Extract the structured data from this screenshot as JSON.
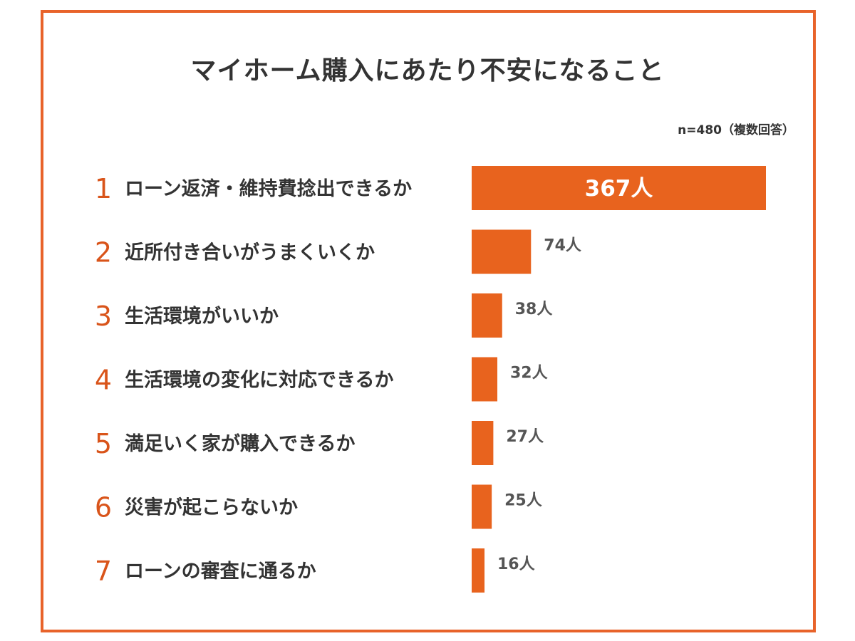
{
  "chart_data": {
    "type": "bar",
    "orientation": "horizontal",
    "title": "マイホーム購入にあたり不安になること",
    "note": "n=480（複数回答）",
    "ranks": [
      "1",
      "2",
      "3",
      "4",
      "5",
      "6",
      "7"
    ],
    "categories": [
      "ローン返済・維持費捻出できるか",
      "近所付き合いがうまくいくか",
      "生活環境がいいか",
      "生活環境の変化に対応できるか",
      "満足いく家が購入できるか",
      "災害が起こらないか",
      "ローンの審査に通るか"
    ],
    "values": [
      367,
      74,
      38,
      32,
      27,
      25,
      16
    ],
    "value_labels": [
      "367人",
      "74人",
      "38人",
      "32人",
      "27人",
      "25人",
      "16人"
    ],
    "unit": "人",
    "xlabel": "",
    "ylabel": "",
    "xlim": [
      0,
      367
    ],
    "grid": false,
    "colors": {
      "bar": "#e8631e",
      "rank": "#d9541a",
      "text": "#333333",
      "frame": "#e8632a"
    }
  }
}
